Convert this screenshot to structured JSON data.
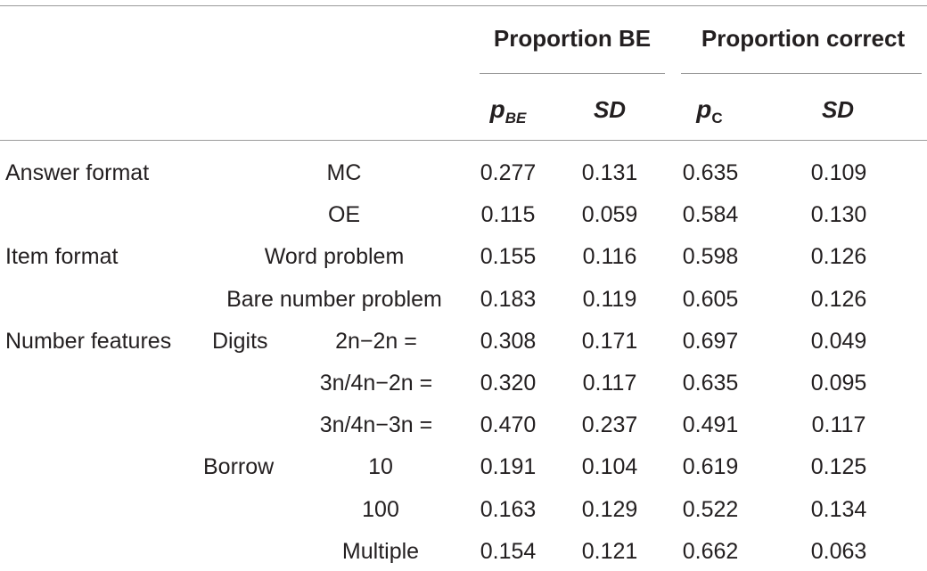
{
  "header": {
    "group_be": "Proportion BE",
    "group_correct": "Proportion correct",
    "col_pbe_main": "p",
    "col_pbe_sub": "BE",
    "col_sd1": "SD",
    "col_pc_main": "p",
    "col_pc_sub": "C",
    "col_sd2": "SD"
  },
  "rows": [
    {
      "cat": "Answer format",
      "sub": "",
      "level": "MC",
      "pbe": "0.277",
      "sd1": "0.131",
      "pc": "0.635",
      "sd2": "0.109"
    },
    {
      "cat": "",
      "sub": "",
      "level": "OE",
      "pbe": "0.115",
      "sd1": "0.059",
      "pc": "0.584",
      "sd2": "0.130"
    },
    {
      "cat": "Item format",
      "sub": "",
      "level": "Word problem",
      "pbe": "0.155",
      "sd1": "0.116",
      "pc": "0.598",
      "sd2": "0.126"
    },
    {
      "cat": "",
      "sub": "",
      "level": "Bare number problem",
      "pbe": "0.183",
      "sd1": "0.119",
      "pc": "0.605",
      "sd2": "0.126"
    },
    {
      "cat": "Number features",
      "sub": "Digits",
      "level": "2n−2n =",
      "pbe": "0.308",
      "sd1": "0.171",
      "pc": "0.697",
      "sd2": "0.049"
    },
    {
      "cat": "",
      "sub": "",
      "level": "3n/4n−2n =",
      "pbe": "0.320",
      "sd1": "0.117",
      "pc": "0.635",
      "sd2": "0.095"
    },
    {
      "cat": "",
      "sub": "",
      "level": "3n/4n−3n =",
      "pbe": "0.470",
      "sd1": "0.237",
      "pc": "0.491",
      "sd2": "0.117"
    },
    {
      "cat": "",
      "sub": "Borrow",
      "level": "10",
      "pbe": "0.191",
      "sd1": "0.104",
      "pc": "0.619",
      "sd2": "0.125"
    },
    {
      "cat": "",
      "sub": "",
      "level": "100",
      "pbe": "0.163",
      "sd1": "0.129",
      "pc": "0.522",
      "sd2": "0.134"
    },
    {
      "cat": "",
      "sub": "",
      "level": "Multiple",
      "pbe": "0.154",
      "sd1": "0.121",
      "pc": "0.662",
      "sd2": "0.063"
    }
  ]
}
